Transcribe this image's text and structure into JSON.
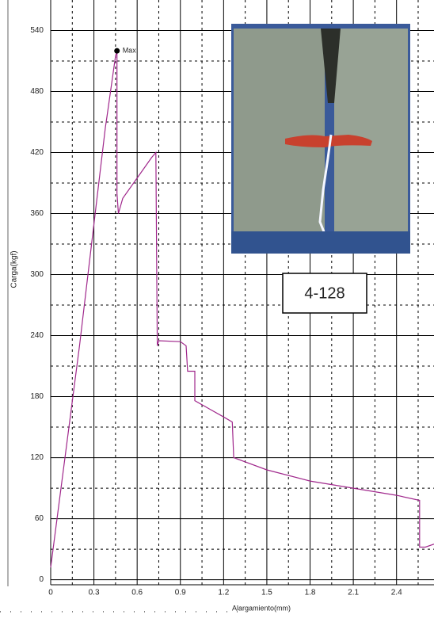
{
  "chart_data": {
    "type": "line",
    "x_label": "Alargamiento(mm)",
    "y_label": "Carga(kgf)",
    "x": [
      0,
      0.2,
      0.38,
      0.39,
      0.45,
      0.46,
      0.46,
      0.47,
      0.5,
      0.6,
      0.7,
      0.73,
      0.74,
      0.75,
      0.9,
      0.94,
      0.95,
      1.0,
      1.0,
      1.1,
      1.2,
      1.26,
      1.27,
      1.5,
      1.8,
      2.1,
      2.4,
      2.56,
      2.56,
      2.6,
      2.66
    ],
    "values": [
      12,
      230,
      445,
      455,
      515,
      520,
      380,
      360,
      375,
      395,
      415,
      420,
      230,
      235,
      234,
      230,
      205,
      205,
      176,
      168,
      160,
      155,
      120,
      108,
      97,
      90,
      83,
      78,
      32,
      32,
      35
    ],
    "color": "#a0288c",
    "xlim": [
      0,
      2.66
    ],
    "ylim": [
      -5,
      570
    ],
    "xticks": [
      0,
      0.3,
      0.6,
      0.9,
      1.2,
      1.5,
      1.8,
      2.1,
      2.4
    ],
    "yticks": [
      0,
      60,
      120,
      180,
      240,
      300,
      360,
      420,
      480,
      540
    ],
    "x_minor_grid": [
      0.15,
      0.45,
      0.75,
      1.05,
      1.35,
      1.65,
      1.95,
      2.25,
      2.55
    ],
    "y_minor_grid": [
      30,
      90,
      150,
      210,
      270,
      330,
      390,
      450,
      510
    ],
    "grid": true,
    "annotations": [
      {
        "text": "Max",
        "x": 0.46,
        "y": 520
      }
    ],
    "label_box": "4-128"
  }
}
